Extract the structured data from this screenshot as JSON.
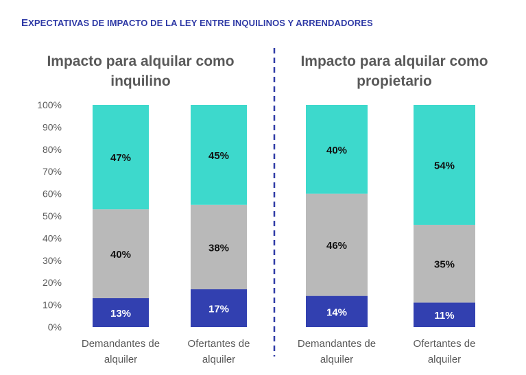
{
  "heading": {
    "first": "E",
    "rest": "XPECTATIVAS DE IMPACTO DE LA LEY ENTRE INQUILINOS Y ARRENDADORES"
  },
  "colors": {
    "bottom": "#3240b0",
    "middle": "#b9b9b9",
    "top": "#3dd9cc",
    "divider": "#2f3aa6",
    "axis_text": "#595959"
  },
  "chart_data": [
    {
      "type": "bar",
      "stacked": true,
      "title": [
        "Impacto para alquilar como",
        "inquilino"
      ],
      "categories": [
        [
          "Demandantes de",
          "alquiler"
        ],
        [
          "Ofertantes de",
          "alquiler"
        ]
      ],
      "y_ticks": [
        "0%",
        "10%",
        "20%",
        "30%",
        "40%",
        "50%",
        "60%",
        "70%",
        "80%",
        "90%",
        "100%"
      ],
      "ylim": [
        0,
        100
      ],
      "series": [
        {
          "values": [
            13,
            17
          ],
          "labels": [
            "13%",
            "17%"
          ]
        },
        {
          "values": [
            40,
            38
          ],
          "labels": [
            "40%",
            "38%"
          ]
        },
        {
          "values": [
            47,
            45
          ],
          "labels": [
            "47%",
            "45%"
          ]
        }
      ]
    },
    {
      "type": "bar",
      "stacked": true,
      "title": [
        "Impacto para alquilar como",
        "propietario"
      ],
      "categories": [
        [
          "Demandantes de",
          "alquiler"
        ],
        [
          "Ofertantes de",
          "alquiler"
        ]
      ],
      "ylim": [
        0,
        100
      ],
      "series": [
        {
          "values": [
            14,
            11
          ],
          "labels": [
            "14%",
            "11%"
          ]
        },
        {
          "values": [
            46,
            35
          ],
          "labels": [
            "46%",
            "35%"
          ]
        },
        {
          "values": [
            40,
            54
          ],
          "labels": [
            "40%",
            "54%"
          ]
        }
      ]
    }
  ]
}
